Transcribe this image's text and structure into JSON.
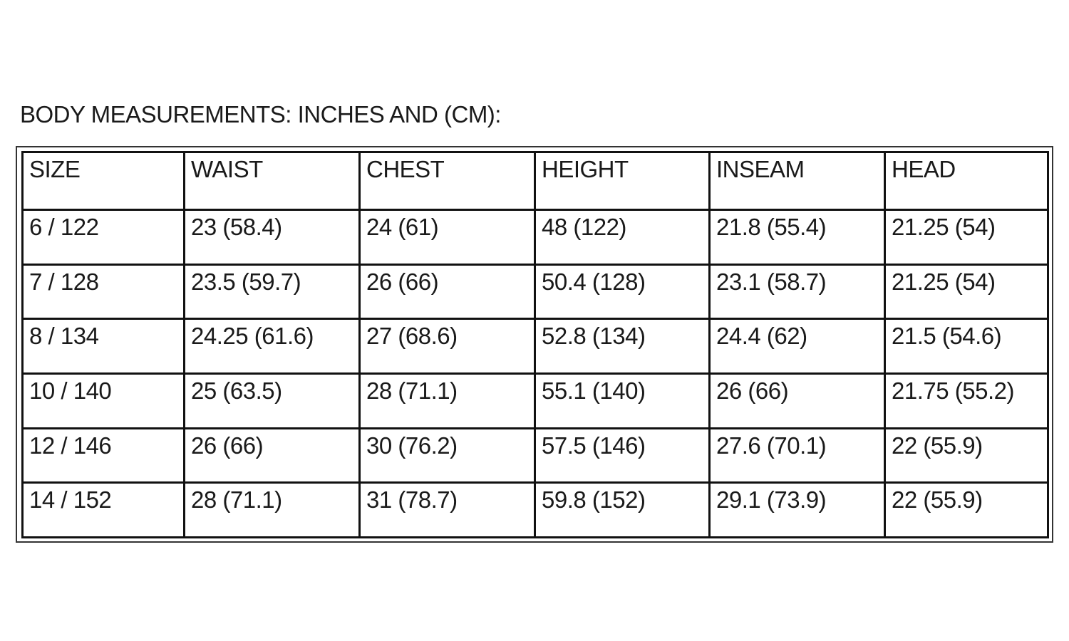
{
  "title": "BODY MEASUREMENTS: INCHES AND (CM):",
  "table": {
    "header": [
      "SIZE",
      "WAIST",
      "CHEST",
      "HEIGHT",
      "INSEAM",
      "HEAD"
    ],
    "rows": [
      [
        "6 / 122",
        "23 (58.4)",
        "24 (61)",
        "48 (122)",
        "21.8 (55.4)",
        "21.25 (54)"
      ],
      [
        "7 / 128",
        "23.5 (59.7)",
        "26 (66)",
        "50.4 (128)",
        "23.1 (58.7)",
        "21.25 (54)"
      ],
      [
        "8 / 134",
        "24.25 (61.6)",
        "27 (68.6)",
        "52.8 (134)",
        "24.4 (62)",
        "21.5 (54.6)"
      ],
      [
        "10 / 140",
        "25 (63.5)",
        "28 (71.1)",
        "55.1 (140)",
        "26 (66)",
        "21.75 (55.2)"
      ],
      [
        "12 / 146",
        "26 (66)",
        "30 (76.2)",
        "57.5 (146)",
        "27.6 (70.1)",
        "22 (55.9)"
      ],
      [
        "14 / 152",
        "28 (71.1)",
        "31 (78.7)",
        "59.8 (152)",
        "29.1 (73.9)",
        "22 (55.9)"
      ]
    ]
  }
}
